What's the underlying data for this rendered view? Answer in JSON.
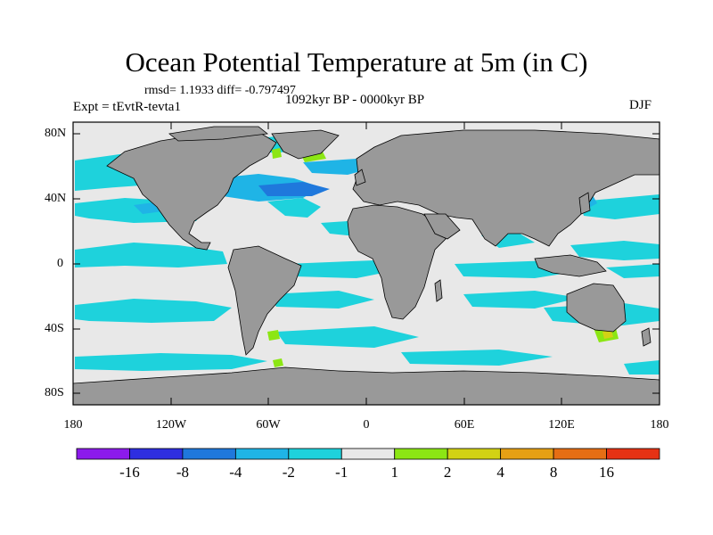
{
  "title": "Ocean Potential Temperature at 5m (in C)",
  "stats": "rmsd= 1.1933 diff= -0.797497",
  "experiment": "Expt = tEvtR-tevta1",
  "period": "1092kyr BP - 0000kyr BP",
  "season": "DJF",
  "lat_labels": [
    "80N",
    "40N",
    "0",
    "40S",
    "80S"
  ],
  "lon_labels": [
    "180",
    "120W",
    "60W",
    "0",
    "60E",
    "120E",
    "180"
  ],
  "colorbar": {
    "colors": [
      "#8c1aeb",
      "#2e2ee0",
      "#1f78dc",
      "#1fb4e6",
      "#1ed2dc",
      "#e8e8e8",
      "#8ce614",
      "#d2d214",
      "#e6a014",
      "#e66e14",
      "#e63214"
    ],
    "labels": [
      "-16",
      "-8",
      "-4",
      "-2",
      "-1",
      "1",
      "2",
      "4",
      "8",
      "16"
    ]
  },
  "colors": {
    "land": "#999999",
    "ocean_neutral": "#e8e8e8"
  }
}
